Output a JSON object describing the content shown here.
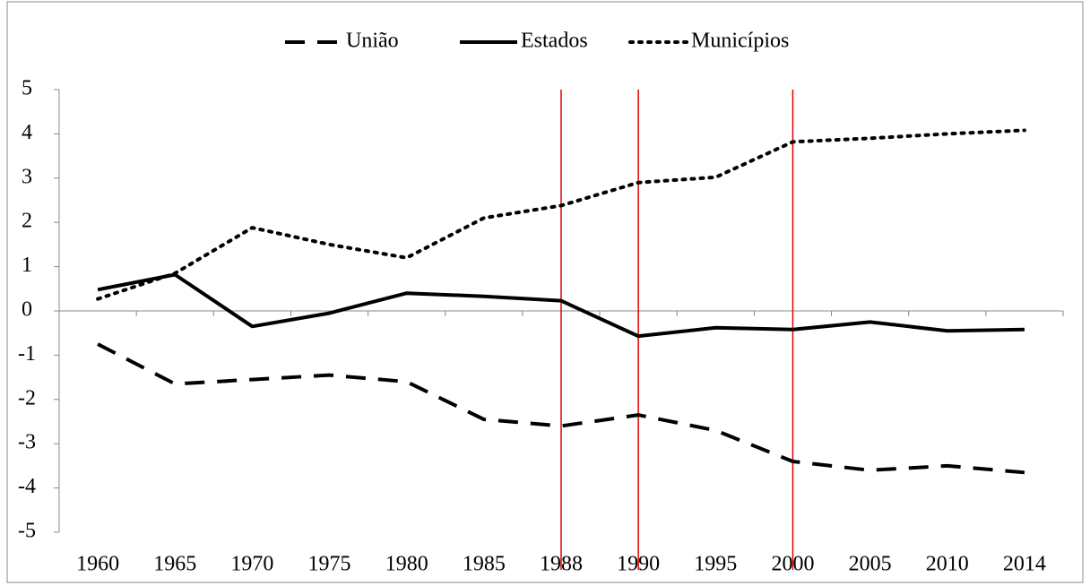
{
  "chart_data": {
    "type": "line",
    "categories": [
      "1960",
      "1965",
      "1970",
      "1975",
      "1980",
      "1985",
      "1988",
      "1990",
      "1995",
      "2000",
      "2005",
      "2010",
      "2014"
    ],
    "series": [
      {
        "name": "União",
        "color": "#000000",
        "dash": "dashed",
        "values": [
          -0.75,
          -1.65,
          -1.55,
          -1.45,
          -1.6,
          -2.45,
          -2.6,
          -2.35,
          -2.7,
          -3.4,
          -3.6,
          -3.5,
          -3.65
        ]
      },
      {
        "name": "Estados",
        "color": "#000000",
        "dash": "solid",
        "values": [
          0.48,
          0.82,
          -0.35,
          -0.05,
          0.4,
          0.33,
          0.23,
          -0.57,
          -0.38,
          -0.42,
          -0.25,
          -0.45,
          -0.42
        ]
      },
      {
        "name": "Municípios",
        "color": "#000000",
        "dash": "dotted",
        "values": [
          0.27,
          0.85,
          1.88,
          1.5,
          1.2,
          2.1,
          2.38,
          2.9,
          3.02,
          3.82,
          3.9,
          4.0,
          4.08
        ]
      }
    ],
    "ylim": [
      -5,
      5
    ],
    "yticks": [
      -5,
      -4,
      -3,
      -2,
      -1,
      0,
      1,
      2,
      3,
      4,
      5
    ],
    "legend": "top",
    "vertical_lines": {
      "at": [
        "1988",
        "1990",
        "2000"
      ],
      "color": "#e00000"
    }
  }
}
